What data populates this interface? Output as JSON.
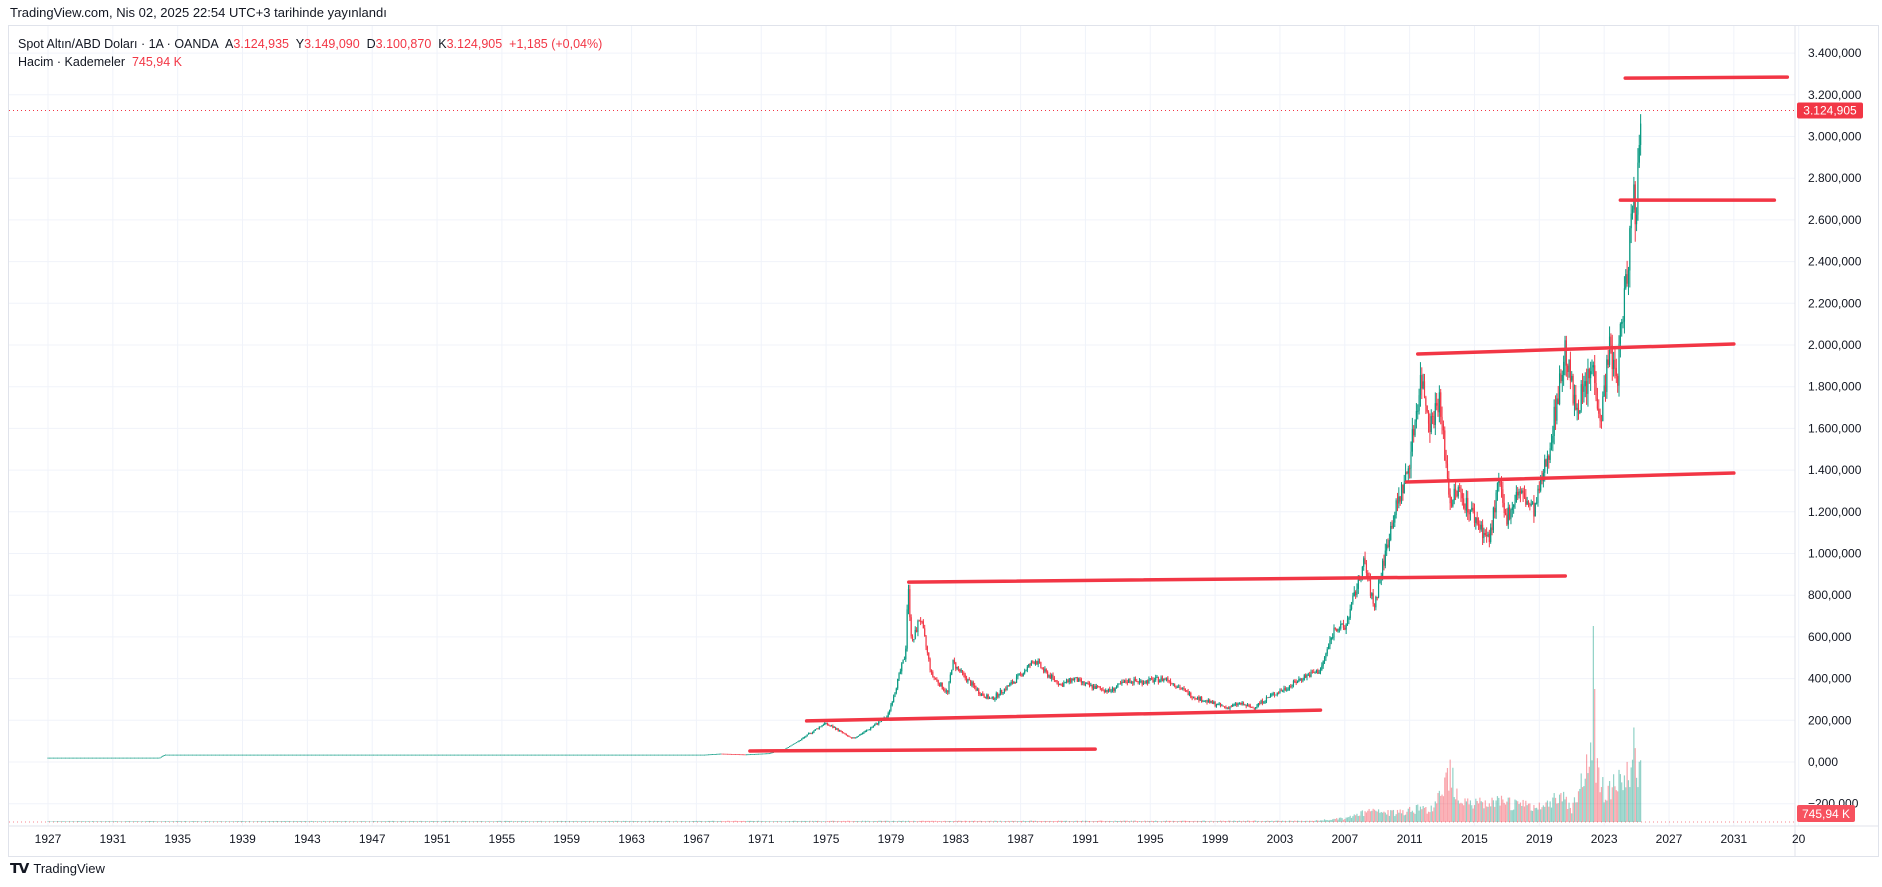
{
  "published": "TradingView.com, Nis 02, 2025 22:54 UTC+3 tarihinde yayınlandı",
  "legend": {
    "symbol": "Spot Altın/ABD Doları · 1A · OANDA",
    "open_label": "A",
    "open": "3.124,935",
    "high_label": "Y",
    "high": "3.149,090",
    "low_label": "D",
    "low": "3.100,870",
    "close_label": "K",
    "close": "3.124,905",
    "change": "+1,185 (+0,04%)",
    "volume_label": "Hacim · Kademeler",
    "volume": "745,94 K"
  },
  "logo": {
    "mark": "TV",
    "text": "TradingView"
  },
  "colors": {
    "up": "#089981",
    "down": "#f23645",
    "drawing": "#f23645",
    "grid": "#f0f3fa"
  },
  "chart_data": {
    "type": "candlestick",
    "title": "Spot Altın/ABD Doları · 1A · OANDA",
    "interval": "1 month",
    "ylim": [
      -200,
      3400
    ],
    "xlim": [
      1925,
      2034
    ],
    "y_ticks": [
      {
        "v": 3400,
        "label": "3.400,000"
      },
      {
        "v": 3200,
        "label": "3.200,000"
      },
      {
        "v": 3000,
        "label": "3.000,000"
      },
      {
        "v": 2800,
        "label": "2.800,000"
      },
      {
        "v": 2600,
        "label": "2.600,000"
      },
      {
        "v": 2400,
        "label": "2.400,000"
      },
      {
        "v": 2200,
        "label": "2.200,000"
      },
      {
        "v": 2000,
        "label": "2.000,000"
      },
      {
        "v": 1800,
        "label": "1.800,000"
      },
      {
        "v": 1600,
        "label": "1.600,000"
      },
      {
        "v": 1400,
        "label": "1.400,000"
      },
      {
        "v": 1200,
        "label": "1.200,000"
      },
      {
        "v": 1000,
        "label": "1.000,000"
      },
      {
        "v": 800,
        "label": "800,000"
      },
      {
        "v": 600,
        "label": "600,000"
      },
      {
        "v": 400,
        "label": "400,000"
      },
      {
        "v": 200,
        "label": "200,000"
      },
      {
        "v": 0,
        "label": "0,000"
      },
      {
        "v": -200,
        "label": "−200,000"
      }
    ],
    "x_ticks": [
      "1927",
      "1931",
      "1935",
      "1939",
      "1943",
      "1947",
      "1951",
      "1955",
      "1959",
      "1963",
      "1967",
      "1971",
      "1975",
      "1979",
      "1983",
      "1987",
      "1991",
      "1995",
      "1999",
      "2003",
      "2007",
      "2011",
      "2015",
      "2019",
      "2023",
      "2027",
      "2031",
      "20"
    ],
    "last_price": {
      "v": 3124.905,
      "label": "3.124,905"
    },
    "last_volume_label": "745,94 K",
    "price_anchors": [
      [
        1927,
        20.6
      ],
      [
        1933.9,
        20.7
      ],
      [
        1934.2,
        35
      ],
      [
        1967.5,
        35
      ],
      [
        1968.5,
        40
      ],
      [
        1970,
        36
      ],
      [
        1971.5,
        42
      ],
      [
        1972.5,
        64
      ],
      [
        1973.5,
        110
      ],
      [
        1974.9,
        185
      ],
      [
        1975.5,
        165
      ],
      [
        1976.6,
        110
      ],
      [
        1977.5,
        150
      ],
      [
        1978.8,
        220
      ],
      [
        1979.9,
        520
      ],
      [
        1980.05,
        850
      ],
      [
        1980.3,
        560
      ],
      [
        1980.8,
        700
      ],
      [
        1981.5,
        420
      ],
      [
        1982.5,
        330
      ],
      [
        1982.8,
        480
      ],
      [
        1983.5,
        410
      ],
      [
        1984.5,
        330
      ],
      [
        1985.2,
        300
      ],
      [
        1986.5,
        380
      ],
      [
        1987.9,
        490
      ],
      [
        1988.5,
        430
      ],
      [
        1989.5,
        370
      ],
      [
        1990.3,
        400
      ],
      [
        1991,
        370
      ],
      [
        1992.5,
        340
      ],
      [
        1993.6,
        390
      ],
      [
        1994.5,
        385
      ],
      [
        1996,
        400
      ],
      [
        1997.5,
        320
      ],
      [
        1998.5,
        290
      ],
      [
        1999.7,
        260
      ],
      [
        2000.5,
        280
      ],
      [
        2001.3,
        260
      ],
      [
        2002.5,
        320
      ],
      [
        2003.5,
        360
      ],
      [
        2004.5,
        410
      ],
      [
        2005.5,
        440
      ],
      [
        2006.4,
        650
      ],
      [
        2007,
        640
      ],
      [
        2008.2,
        960
      ],
      [
        2008.8,
        740
      ],
      [
        2009.9,
        1150
      ],
      [
        2010.9,
        1400
      ],
      [
        2011.7,
        1850
      ],
      [
        2012.3,
        1620
      ],
      [
        2012.8,
        1750
      ],
      [
        2013.5,
        1250
      ],
      [
        2014,
        1300
      ],
      [
        2015.9,
        1060
      ],
      [
        2016.5,
        1340
      ],
      [
        2016.9,
        1160
      ],
      [
        2017.7,
        1300
      ],
      [
        2018.7,
        1200
      ],
      [
        2019.6,
        1500
      ],
      [
        2020.6,
        1980
      ],
      [
        2021.2,
        1700
      ],
      [
        2021.9,
        1800
      ],
      [
        2022.3,
        1900
      ],
      [
        2022.8,
        1640
      ],
      [
        2023.3,
        1990
      ],
      [
        2023.8,
        1830
      ],
      [
        2024.0,
        2050
      ],
      [
        2024.4,
        2330
      ],
      [
        2024.8,
        2750
      ],
      [
        2024.95,
        2620
      ],
      [
        2025.25,
        3125
      ]
    ],
    "volume_anchors": [
      [
        1927,
        2
      ],
      [
        2005,
        3
      ],
      [
        2007,
        10
      ],
      [
        2008.5,
        30
      ],
      [
        2010,
        25
      ],
      [
        2011.5,
        40
      ],
      [
        2012.5,
        35
      ],
      [
        2013.5,
        150
      ],
      [
        2014,
        70
      ],
      [
        2015,
        50
      ],
      [
        2017,
        55
      ],
      [
        2019,
        40
      ],
      [
        2020.3,
        80
      ],
      [
        2021,
        40
      ],
      [
        2022.3,
        200
      ],
      [
        2023,
        90
      ],
      [
        2024,
        110
      ],
      [
        2024.8,
        160
      ],
      [
        2025.25,
        130
      ]
    ],
    "volume_spikes": [
      [
        2022.3,
        560
      ],
      [
        2022.4,
        380
      ],
      [
        2013.7,
        155
      ],
      [
        2024.8,
        270
      ]
    ],
    "drawings": [
      {
        "type": "trend_line",
        "from": [
          1970.3,
          53
        ],
        "to": [
          1991.6,
          62
        ]
      },
      {
        "type": "trend_line",
        "from": [
          1973.8,
          197
        ],
        "to": [
          2005.5,
          249
        ]
      },
      {
        "type": "trend_line",
        "from": [
          1980.1,
          863
        ],
        "to": [
          2020.6,
          892
        ]
      },
      {
        "type": "trend_line",
        "from": [
          2010.8,
          1343
        ],
        "to": [
          2031,
          1386
        ]
      },
      {
        "type": "trend_line",
        "from": [
          2011.5,
          1957
        ],
        "to": [
          2031,
          2005
        ]
      },
      {
        "type": "trend_line",
        "from": [
          2024.0,
          2695
        ],
        "to": [
          2033.5,
          2695
        ]
      },
      {
        "type": "trend_line",
        "from": [
          2024.3,
          3280
        ],
        "to": [
          2034.3,
          3285
        ]
      }
    ]
  }
}
